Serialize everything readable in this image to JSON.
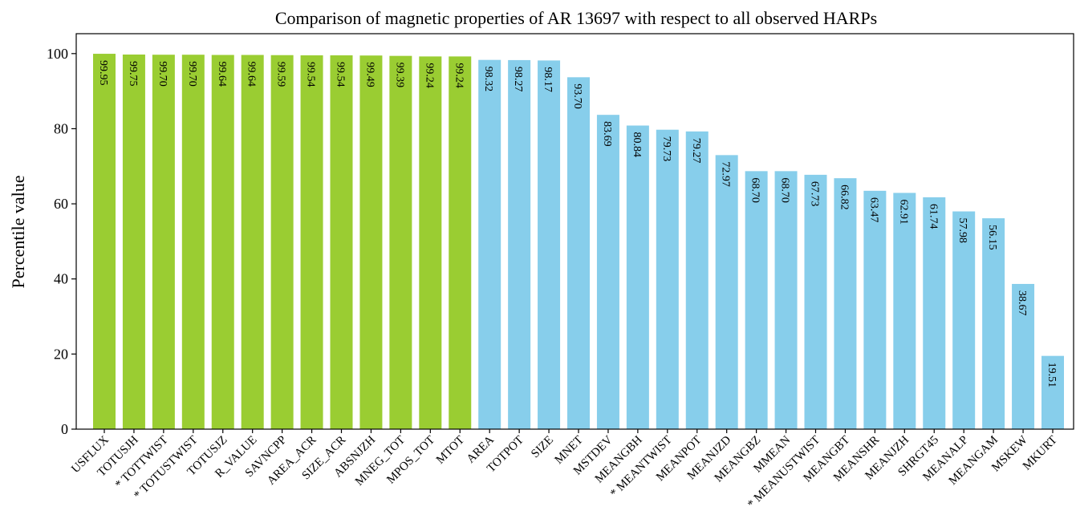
{
  "chart_data": {
    "type": "bar",
    "title": "Comparison of magnetic properties of AR 13697 with respect to all observed HARPs",
    "y_label": "Percentile value",
    "categories": [
      "USFLUX",
      "TOTUSJH",
      "* TOTTWIST",
      "* TOTUSTWIST",
      "TOTUSJZ",
      "R_VALUE",
      "SAVNCPP",
      "AREA_ACR",
      "SIZE_ACR",
      "ABSNJZH",
      "MNEG_TOT",
      "MPOS_TOT",
      "MTOT",
      "AREA",
      "TOTPOT",
      "SIZE",
      "MNET",
      "MSTDEV",
      "MEANGBH",
      "* MEANTWIST",
      "MEANPOT",
      "MEANJZD",
      "MEANGBZ",
      "MMEAN",
      "* MEANUSTWIST",
      "MEANGBT",
      "MEANSHR",
      "MEANJZH",
      "SHRGT45",
      "MEANALP",
      "MEANGAM",
      "MSKEW",
      "MKURT"
    ],
    "values": [
      99.95,
      99.75,
      99.7,
      99.7,
      99.64,
      99.64,
      99.59,
      99.54,
      99.54,
      99.49,
      99.39,
      99.24,
      99.24,
      98.32,
      98.27,
      98.17,
      93.7,
      83.69,
      80.84,
      79.73,
      79.27,
      72.97,
      68.7,
      68.7,
      67.73,
      66.82,
      63.47,
      62.91,
      61.74,
      57.98,
      56.15,
      38.67,
      19.51
    ],
    "value_labels": [
      "99.95",
      "99.75",
      "99.70",
      "99.70",
      "99.64",
      "99.64",
      "99.59",
      "99.54",
      "99.54",
      "99.49",
      "99.39",
      "99.24",
      "99.24",
      "98.32",
      "98.27",
      "98.17",
      "93.70",
      "83.69",
      "80.84",
      "79.73",
      "79.27",
      "72.97",
      "68.70",
      "68.70",
      "67.73",
      "66.82",
      "63.47",
      "62.91",
      "61.74",
      "57.98",
      "56.15",
      "38.67",
      "19.51"
    ],
    "colors": [
      "#9acd32",
      "#9acd32",
      "#9acd32",
      "#9acd32",
      "#9acd32",
      "#9acd32",
      "#9acd32",
      "#9acd32",
      "#9acd32",
      "#9acd32",
      "#9acd32",
      "#9acd32",
      "#9acd32",
      "#87ceeb",
      "#87ceeb",
      "#87ceeb",
      "#87ceeb",
      "#87ceeb",
      "#87ceeb",
      "#87ceeb",
      "#87ceeb",
      "#87ceeb",
      "#87ceeb",
      "#87ceeb",
      "#87ceeb",
      "#87ceeb",
      "#87ceeb",
      "#87ceeb",
      "#87ceeb",
      "#87ceeb",
      "#87ceeb",
      "#87ceeb",
      "#87ceeb"
    ],
    "category_colors": [
      "#ff0000",
      "#ff0000",
      "#000000",
      "#ff0000",
      "#ff0000",
      "#ff0000",
      "#000000",
      "#000000",
      "#000000",
      "#000000",
      "#000000",
      "#000000",
      "#000000",
      "#000000",
      "#000000",
      "#000000",
      "#000000",
      "#000000",
      "#000000",
      "#000000",
      "#000000",
      "#000000",
      "#000000",
      "#000000",
      "#000000",
      "#000000",
      "#000000",
      "#000000",
      "#000000",
      "#000000",
      "#000000",
      "#000000",
      "#000000"
    ],
    "ylim": [
      0,
      105.3
    ],
    "yticks": [
      0,
      20,
      40,
      60,
      80,
      100
    ],
    "grid": false
  }
}
